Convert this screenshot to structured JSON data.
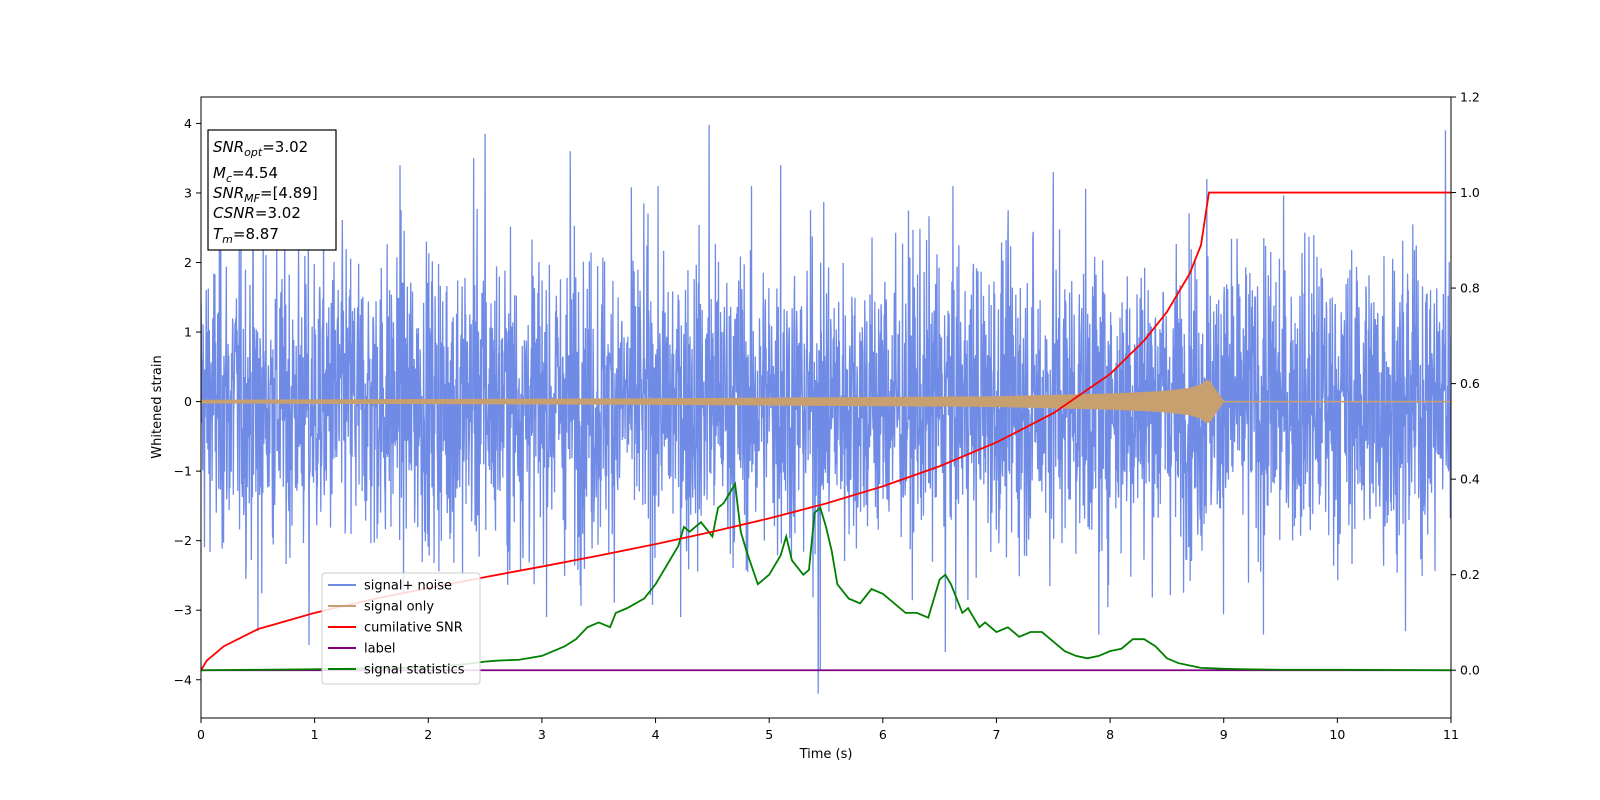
{
  "chart_data": {
    "type": "line",
    "xlabel": "Time (s)",
    "ylabel": "Whitened strain",
    "xlim": [
      0,
      11
    ],
    "ylim": [
      -4.55,
      4.38
    ],
    "y2lim": [
      -0.1,
      1.2
    ],
    "x_ticks": [
      0,
      1,
      2,
      3,
      4,
      5,
      6,
      7,
      8,
      9,
      10,
      11
    ],
    "y_ticks": [
      -4,
      -3,
      -2,
      -1,
      0,
      1,
      2,
      3,
      4
    ],
    "y2_ticks": [
      0.0,
      0.2,
      0.4,
      0.6,
      0.8,
      1.0,
      1.2
    ],
    "legend_position": "lower-left",
    "colors": {
      "signal_noise": "#6f8be6",
      "signal_only": "#c8a070",
      "cumulative_snr": "#ff0000",
      "label": "#800080",
      "signal_statistics": "#008000"
    },
    "info_box": [
      {
        "base": "SNR",
        "sub": "opt",
        "value": "=3.02"
      },
      {
        "base": "M",
        "sub": "c",
        "value": "=4.54"
      },
      {
        "base": "SNR",
        "sub": "MF",
        "value": "=[4.89]"
      },
      {
        "base": "CSNR",
        "sub": "",
        "value": "=3.02"
      },
      {
        "base": "T",
        "sub": "m",
        "value": "=8.87"
      }
    ],
    "series": [
      {
        "name": "signal+ noise",
        "axis": "left",
        "style": "noise",
        "x_range": [
          0,
          11
        ],
        "typical_amplitude": 1.2,
        "peak_spikes": [
          [
            0.5,
            -3.3
          ],
          [
            0.95,
            -3.5
          ],
          [
            1.75,
            3.4
          ],
          [
            2.4,
            3.5
          ],
          [
            2.5,
            3.85
          ],
          [
            3.25,
            3.6
          ],
          [
            4.47,
            3.98
          ],
          [
            5.1,
            3.4
          ],
          [
            5.43,
            -4.2
          ],
          [
            5.45,
            -3.85
          ],
          [
            6.55,
            -3.6
          ],
          [
            7.5,
            3.3
          ],
          [
            7.9,
            -3.35
          ],
          [
            8.85,
            3.2
          ],
          [
            10.95,
            3.9
          ],
          [
            9.35,
            -3.35
          ],
          [
            10.6,
            -3.3
          ]
        ]
      },
      {
        "name": "signal only",
        "axis": "left",
        "style": "chirp",
        "x": [
          0,
          1,
          2,
          3,
          4,
          5,
          6,
          7,
          7.5,
          8,
          8.3,
          8.5,
          8.7,
          8.8,
          8.85,
          8.87,
          9,
          11
        ],
        "envelope": [
          0.02,
          0.025,
          0.03,
          0.035,
          0.04,
          0.05,
          0.06,
          0.07,
          0.09,
          0.11,
          0.13,
          0.15,
          0.19,
          0.24,
          0.3,
          0.3,
          0.0,
          0.0
        ]
      },
      {
        "name": "cumilative SNR",
        "axis": "right",
        "x": [
          0,
          0.05,
          0.2,
          0.5,
          1,
          1.5,
          2,
          2.5,
          3,
          3.5,
          4,
          4.5,
          5,
          5.5,
          6,
          6.5,
          7,
          7.5,
          8,
          8.3,
          8.5,
          8.7,
          8.8,
          8.87,
          9,
          11
        ],
        "values": [
          0.0,
          0.02,
          0.05,
          0.086,
          0.12,
          0.148,
          0.172,
          0.195,
          0.217,
          0.24,
          0.264,
          0.29,
          0.318,
          0.349,
          0.385,
          0.427,
          0.477,
          0.538,
          0.62,
          0.69,
          0.75,
          0.83,
          0.89,
          1.0,
          1.0,
          1.0
        ]
      },
      {
        "name": "label",
        "axis": "right",
        "x": [
          0,
          11
        ],
        "values": [
          0.0,
          0.0
        ]
      },
      {
        "name": "signal statistics",
        "axis": "right",
        "x": [
          0,
          0.5,
          1,
          1.5,
          2,
          2.3,
          2.5,
          2.6,
          2.8,
          3.0,
          3.2,
          3.3,
          3.4,
          3.5,
          3.6,
          3.65,
          3.75,
          3.9,
          4.0,
          4.05,
          4.1,
          4.15,
          4.2,
          4.25,
          4.3,
          4.4,
          4.5,
          4.55,
          4.6,
          4.65,
          4.7,
          4.75,
          4.8,
          4.9,
          5.0,
          5.1,
          5.15,
          5.2,
          5.3,
          5.35,
          5.4,
          5.45,
          5.5,
          5.55,
          5.6,
          5.7,
          5.8,
          5.9,
          6.0,
          6.1,
          6.2,
          6.3,
          6.4,
          6.5,
          6.55,
          6.6,
          6.7,
          6.75,
          6.85,
          6.9,
          7.0,
          7.1,
          7.2,
          7.3,
          7.4,
          7.5,
          7.6,
          7.7,
          7.8,
          7.9,
          8.0,
          8.1,
          8.2,
          8.3,
          8.4,
          8.5,
          8.6,
          8.7,
          8.8,
          8.9,
          9.0,
          9.2,
          9.5,
          10,
          11
        ],
        "values": [
          0.0,
          0.001,
          0.002,
          0.004,
          0.006,
          0.012,
          0.018,
          0.02,
          0.022,
          0.03,
          0.05,
          0.065,
          0.09,
          0.1,
          0.09,
          0.12,
          0.13,
          0.15,
          0.18,
          0.2,
          0.22,
          0.24,
          0.26,
          0.3,
          0.29,
          0.31,
          0.28,
          0.34,
          0.35,
          0.37,
          0.39,
          0.29,
          0.25,
          0.18,
          0.2,
          0.24,
          0.28,
          0.23,
          0.2,
          0.21,
          0.33,
          0.34,
          0.3,
          0.25,
          0.18,
          0.15,
          0.14,
          0.17,
          0.16,
          0.14,
          0.12,
          0.12,
          0.11,
          0.19,
          0.2,
          0.18,
          0.12,
          0.13,
          0.09,
          0.1,
          0.08,
          0.09,
          0.07,
          0.08,
          0.08,
          0.06,
          0.04,
          0.03,
          0.025,
          0.03,
          0.04,
          0.045,
          0.065,
          0.065,
          0.05,
          0.025,
          0.015,
          0.01,
          0.005,
          0.004,
          0.003,
          0.002,
          0.001,
          0.001,
          0.0
        ]
      }
    ]
  }
}
